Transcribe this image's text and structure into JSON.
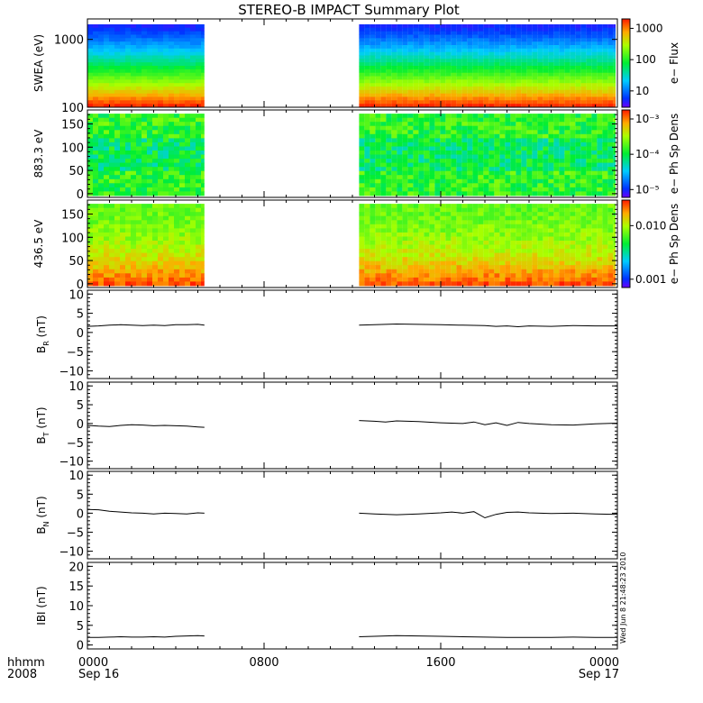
{
  "title": "STEREO-B IMPACT Summary Plot",
  "stamp": "Wed Jun  8 21:48:23 2010",
  "footer": {
    "row1_label": "hhmm",
    "row2_label": "2008",
    "time_ticks": [
      "0000",
      "0800",
      "1600",
      "0000"
    ],
    "date_labels": [
      "Sep 16",
      "",
      "",
      "Sep 17"
    ]
  },
  "colors": {
    "trace": "#000000",
    "frame": "#000000"
  },
  "chart_data": [
    {
      "type": "heatmap",
      "ylabel": "SWEA (eV)",
      "ylog": true,
      "yrange": [
        100,
        2000
      ],
      "yticks": [
        100,
        1000
      ],
      "ytick_labels": [
        "100",
        "1000"
      ],
      "x_hours": [
        0,
        24
      ],
      "data_gap_hours": [
        5.3,
        12.3
      ],
      "colorbar": {
        "label": "e− Flux",
        "log": true,
        "range": [
          3,
          2000
        ],
        "ticks": [
          10,
          100,
          1000
        ],
        "tick_labels": [
          "10",
          "100",
          "1000"
        ]
      },
      "description_values": {
        "low_energy_flux": 1500,
        "high_energy_flux": 8
      }
    },
    {
      "type": "heatmap",
      "ylabel": "883.3 eV",
      "yrange": [
        -8,
        180
      ],
      "yticks": [
        0,
        50,
        100,
        150
      ],
      "ytick_labels": [
        "0",
        "50",
        "100",
        "150"
      ],
      "x_hours": [
        0,
        24
      ],
      "data_gap_hours": [
        5.3,
        12.3
      ],
      "colorbar": {
        "label": "e− Ph Sp Dens",
        "log": true,
        "range": [
          6e-06,
          0.0018
        ],
        "ticks": [
          1e-05,
          0.0001,
          0.001
        ],
        "tick_labels": [
          "10⁻⁵",
          "10⁻⁴",
          "10⁻³"
        ]
      }
    },
    {
      "type": "heatmap",
      "ylabel": "436.5 eV",
      "yrange": [
        -8,
        180
      ],
      "yticks": [
        0,
        50,
        100,
        150
      ],
      "ytick_labels": [
        "0",
        "50",
        "100",
        "150"
      ],
      "x_hours": [
        0,
        24
      ],
      "data_gap_hours": [
        5.3,
        12.3
      ],
      "colorbar": {
        "label": "e− Ph Sp Dens",
        "log": true,
        "range": [
          0.0007,
          0.03
        ],
        "ticks": [
          0.001,
          0.01
        ],
        "tick_labels": [
          "0.001",
          "0.010"
        ]
      }
    },
    {
      "type": "line",
      "ylabel_main": "B",
      "ylabel_sub": "R",
      "ylabel_unit": " (nT)",
      "ylim": [
        -12,
        11
      ],
      "yticks": [
        -10,
        -5,
        0,
        5,
        10
      ],
      "ytick_labels": [
        "−10",
        "−5",
        "0",
        "5",
        "10"
      ],
      "x_hours": [
        0,
        24
      ],
      "series": [
        {
          "x": [
            0,
            0.5,
            1,
            1.5,
            2,
            2.5,
            3,
            3.5,
            4,
            4.5,
            5,
            5.3
          ],
          "y": [
            1.6,
            1.7,
            1.9,
            2.0,
            1.9,
            1.8,
            1.9,
            1.8,
            2.0,
            2.0,
            2.1,
            1.9
          ]
        },
        {
          "x": [
            12.3,
            13,
            14,
            15,
            16,
            17,
            18,
            18.5,
            19,
            19.5,
            20,
            21,
            22,
            23,
            24
          ],
          "y": [
            1.9,
            2.0,
            2.2,
            2.1,
            2.0,
            1.9,
            1.8,
            1.6,
            1.7,
            1.5,
            1.7,
            1.6,
            1.8,
            1.7,
            1.7
          ]
        }
      ]
    },
    {
      "type": "line",
      "ylabel_main": "B",
      "ylabel_sub": "T",
      "ylabel_unit": " (nT)",
      "ylim": [
        -12,
        11
      ],
      "yticks": [
        -10,
        -5,
        0,
        5,
        10
      ],
      "ytick_labels": [
        "−10",
        "−5",
        "0",
        "5",
        "10"
      ],
      "x_hours": [
        0,
        24
      ],
      "series": [
        {
          "x": [
            0,
            0.5,
            1,
            1.5,
            2,
            2.5,
            3,
            3.5,
            4,
            4.5,
            5,
            5.3
          ],
          "y": [
            -0.5,
            -0.7,
            -0.8,
            -0.5,
            -0.3,
            -0.4,
            -0.6,
            -0.5,
            -0.6,
            -0.7,
            -0.9,
            -1.0
          ]
        },
        {
          "x": [
            12.3,
            13,
            13.5,
            14,
            15,
            16,
            17,
            17.5,
            18,
            18.5,
            19,
            19.5,
            20,
            21,
            22,
            23,
            24
          ],
          "y": [
            0.8,
            0.6,
            0.4,
            0.7,
            0.5,
            0.2,
            0.0,
            0.4,
            -0.3,
            0.2,
            -0.5,
            0.3,
            0.0,
            -0.3,
            -0.4,
            -0.1,
            0.1
          ]
        }
      ]
    },
    {
      "type": "line",
      "ylabel_main": "B",
      "ylabel_sub": "N",
      "ylabel_unit": " (nT)",
      "ylim": [
        -12,
        11
      ],
      "yticks": [
        -10,
        -5,
        0,
        5,
        10
      ],
      "ytick_labels": [
        "−10",
        "−5",
        "0",
        "5",
        "10"
      ],
      "x_hours": [
        0,
        24
      ],
      "series": [
        {
          "x": [
            0,
            0.5,
            1,
            1.5,
            2,
            2.5,
            3,
            3.5,
            4,
            4.5,
            5,
            5.3
          ],
          "y": [
            1.0,
            0.9,
            0.5,
            0.3,
            0.1,
            0.0,
            -0.2,
            0.0,
            -0.1,
            -0.2,
            0.1,
            0.0
          ]
        },
        {
          "x": [
            12.3,
            13,
            14,
            15,
            16,
            16.5,
            17,
            17.5,
            18,
            18.5,
            19,
            19.5,
            20,
            21,
            22,
            23,
            24
          ],
          "y": [
            0.0,
            -0.2,
            -0.4,
            -0.2,
            0.1,
            0.3,
            0.0,
            0.4,
            -1.2,
            -0.3,
            0.2,
            0.3,
            0.1,
            -0.1,
            0.0,
            -0.2,
            -0.3
          ]
        }
      ]
    },
    {
      "type": "line",
      "ylabel_main": "IBI",
      "ylabel_sub": "",
      "ylabel_unit": " (nT)",
      "ylim": [
        -1,
        21
      ],
      "yticks": [
        0,
        5,
        10,
        15,
        20
      ],
      "ytick_labels": [
        "0",
        "5",
        "10",
        "15",
        "20"
      ],
      "x_hours": [
        0,
        24
      ],
      "series": [
        {
          "x": [
            0,
            0.5,
            1,
            1.5,
            2,
            2.5,
            3,
            3.5,
            4,
            4.5,
            5,
            5.3
          ],
          "y": [
            1.9,
            1.9,
            2.0,
            2.1,
            2.0,
            2.0,
            2.1,
            2.0,
            2.2,
            2.3,
            2.4,
            2.3
          ]
        },
        {
          "x": [
            12.3,
            13,
            14,
            15,
            16,
            17,
            18,
            19,
            20,
            21,
            22,
            23,
            24
          ],
          "y": [
            2.1,
            2.2,
            2.4,
            2.3,
            2.2,
            2.1,
            2.0,
            1.9,
            1.9,
            1.9,
            2.0,
            1.9,
            1.9
          ]
        }
      ]
    }
  ]
}
